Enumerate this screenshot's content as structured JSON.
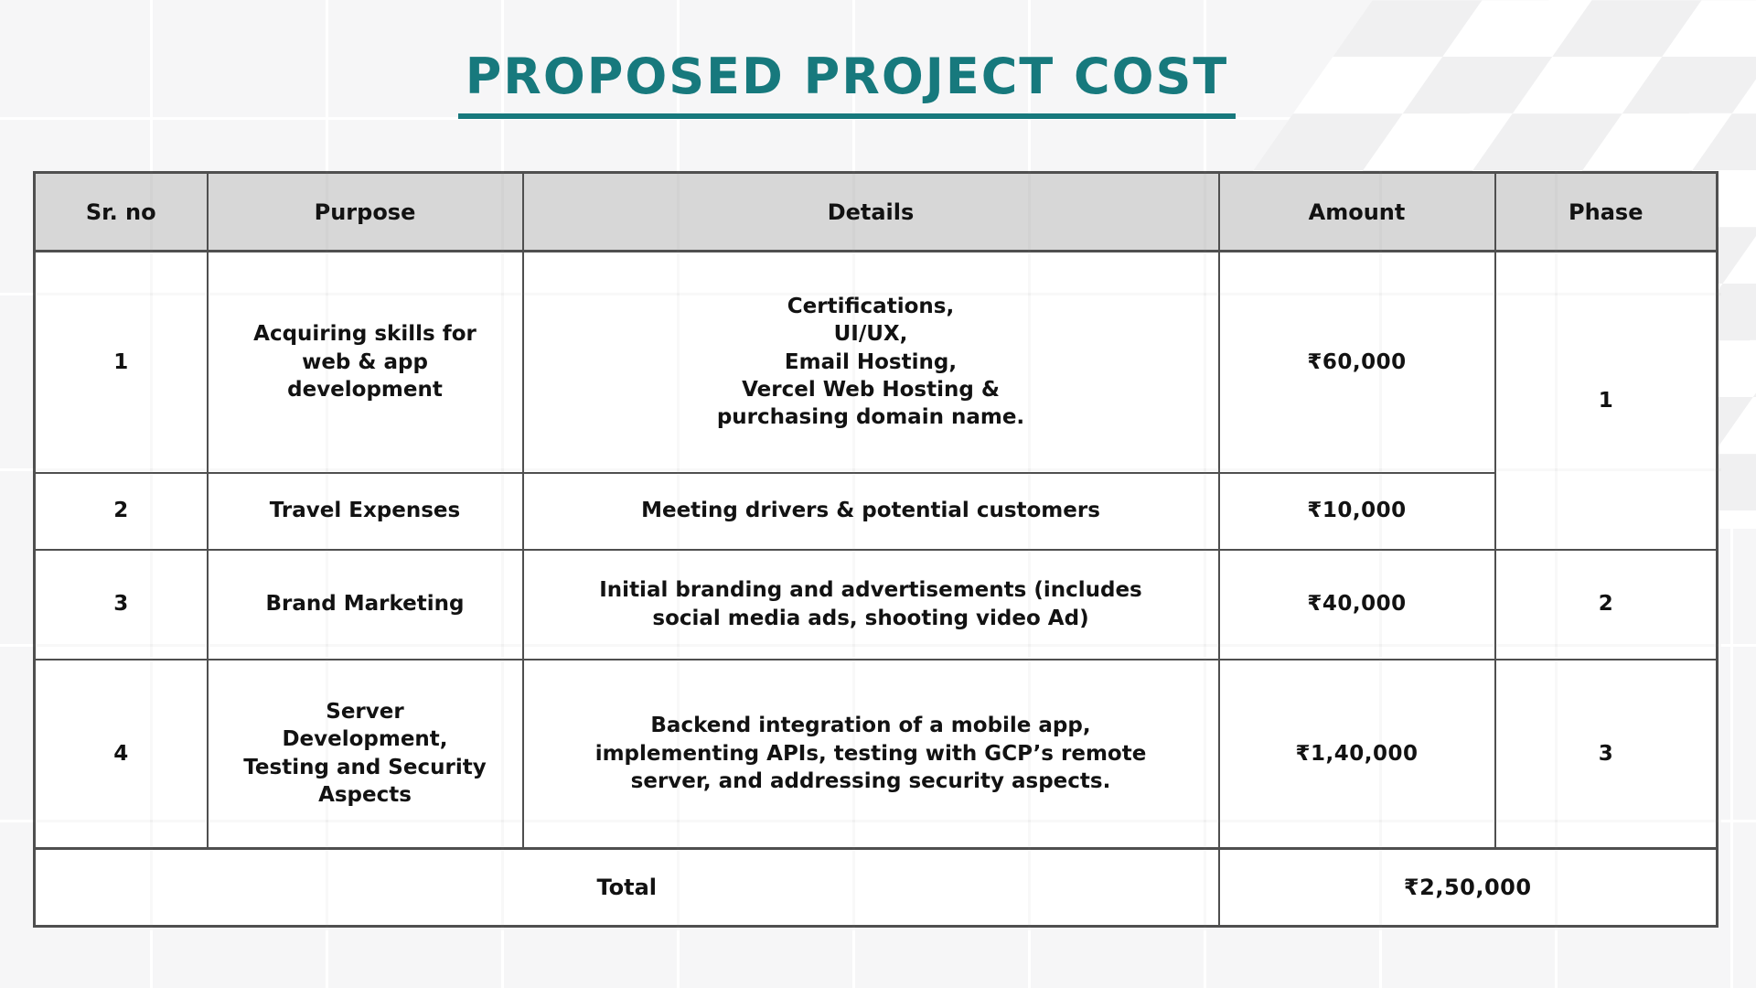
{
  "page": {
    "title": "PROPOSED PROJECT COST"
  },
  "table": {
    "headers": {
      "sr": "Sr. no",
      "purpose": "Purpose",
      "details": "Details",
      "amount": "Amount",
      "phase": "Phase"
    },
    "rows": [
      {
        "sr": "1",
        "purpose": "Acquiring skills for\nweb & app\ndevelopment",
        "details": "Certifications,\nUI/UX,\nEmail Hosting,\nVercel Web Hosting &\npurchasing domain name.",
        "amount": "₹60,000",
        "phase": "1"
      },
      {
        "sr": "2",
        "purpose": "Travel Expenses",
        "details": "Meeting drivers & potential customers",
        "amount": "₹10,000"
      },
      {
        "sr": "3",
        "purpose": "Brand Marketing",
        "details": "Initial branding  and advertisements (includes\nsocial media ads, shooting video Ad)",
        "amount": "₹40,000",
        "phase": "2"
      },
      {
        "sr": "4",
        "purpose": "Server\nDevelopment,\nTesting and Security\nAspects",
        "details": "Backend integration of a mobile app,\nimplementing APIs, testing with GCP’s remote\nserver, and addressing security aspects.",
        "amount": "₹1,40,000",
        "phase": "3"
      }
    ],
    "total": {
      "label": "Total",
      "amount": "₹2,50,000"
    }
  },
  "colors": {
    "accent_teal": "#17797d",
    "header_bg": "#d7d7d7",
    "table_border": "#4f4f4f",
    "checker_gray": "#f0f0f1",
    "text": "#121212"
  }
}
